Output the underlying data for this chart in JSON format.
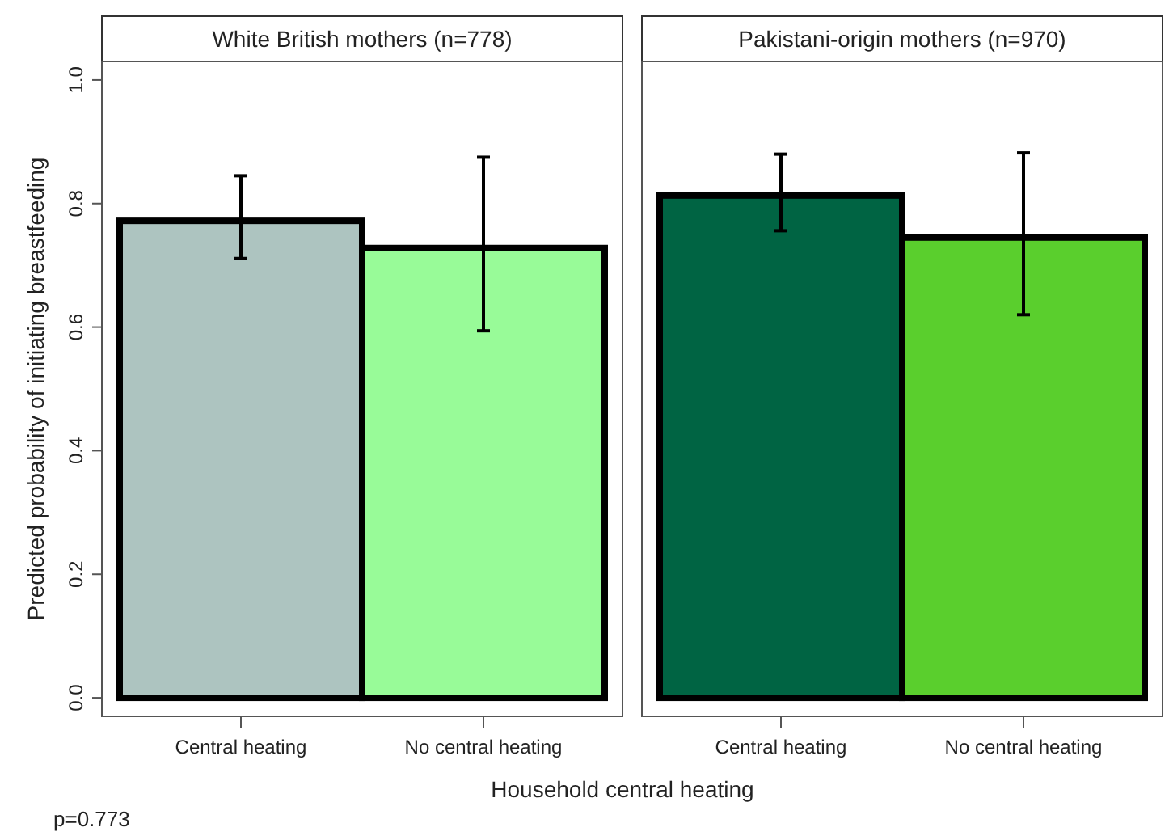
{
  "chart_data": [
    {
      "type": "bar",
      "title": "White British mothers (n=778)",
      "ylabel": "Predicted probability of initiating breastfeeding",
      "xlabel": "Household central heating",
      "categories": [
        "Central heating",
        "No central heating"
      ],
      "values": [
        0.772,
        0.728
      ],
      "colors": [
        "#adc4c0",
        "#98fb98"
      ],
      "errors": [
        [
          0.711,
          0.845
        ],
        [
          0.594,
          0.875
        ]
      ],
      "ylim": [
        -0.03,
        1.03
      ],
      "yticks": [
        {
          "value": 0,
          "label": "0.0"
        },
        0.2,
        0.4,
        0.6,
        0.8,
        {
          "value": 1,
          "label": "1.0"
        }
      ],
      "annotations": [
        "p=0.773"
      ]
    },
    {
      "type": "bar",
      "title": "Pakistani-origin mothers (n=970)",
      "categories": [
        "Central heating",
        "No central heating"
      ],
      "values": [
        0.813,
        0.745
      ],
      "colors": [
        "#006443",
        "#5acf2d"
      ],
      "errors": [
        [
          0.756,
          0.88
        ],
        [
          0.62,
          0.882
        ]
      ],
      "ylim": [
        -0.03,
        1.03
      ],
      "tick_labels": "x"
    }
  ]
}
